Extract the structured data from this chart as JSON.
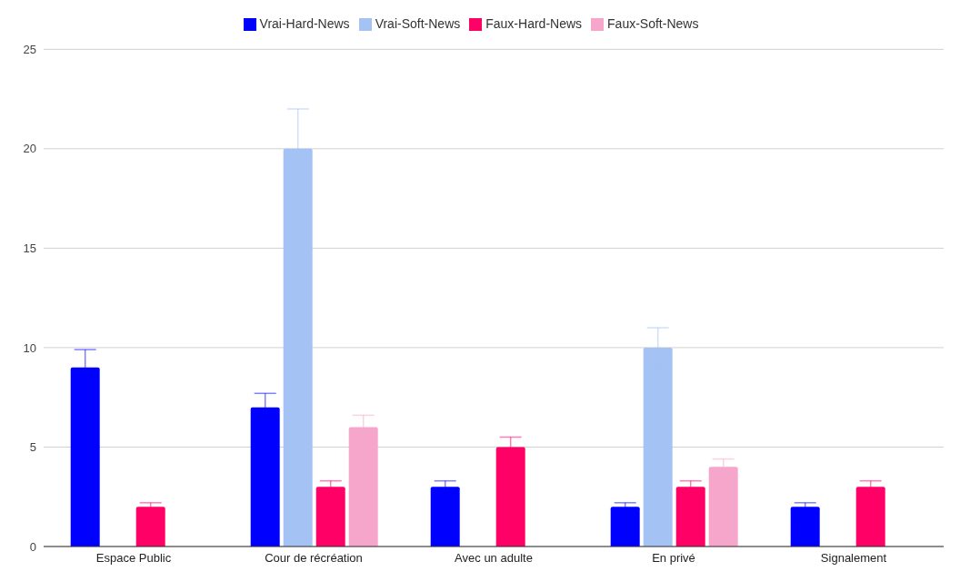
{
  "chart_data": {
    "type": "bar",
    "categories": [
      "Espace Public",
      "Cour de récréation",
      "Avec un adulte",
      "En privé",
      "Signalement"
    ],
    "series": [
      {
        "name": "Vrai-Hard-News",
        "color": "#0000ff",
        "values": [
          9,
          7,
          3,
          2,
          2
        ],
        "errors": [
          0.9,
          0.7,
          0.3,
          0.2,
          0.2
        ]
      },
      {
        "name": "Vrai-Soft-News",
        "color": "#a4c2f4",
        "values": [
          0,
          20,
          0,
          10,
          0
        ],
        "errors": [
          null,
          2,
          null,
          1,
          null
        ]
      },
      {
        "name": "Faux-Hard-News",
        "color": "#ff0066",
        "values": [
          2,
          3,
          5,
          3,
          3
        ],
        "errors": [
          0.2,
          0.3,
          0.5,
          0.3,
          0.3
        ]
      },
      {
        "name": "Faux-Soft-News",
        "color": "#f7a6cb",
        "values": [
          0,
          6,
          0,
          4,
          0
        ],
        "errors": [
          null,
          0.6,
          null,
          0.4,
          null
        ]
      }
    ],
    "ylim": [
      0,
      25
    ],
    "yticks": [
      0,
      5,
      10,
      15,
      20,
      25
    ],
    "grid": "y",
    "legend": "top"
  }
}
